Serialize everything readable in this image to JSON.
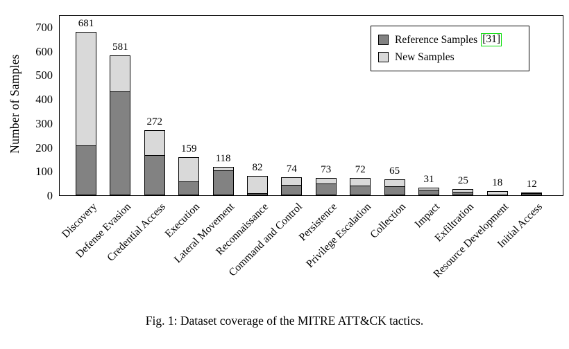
{
  "figure": {
    "caption": "Fig. 1: Dataset coverage of the MITRE ATT&CK tactics."
  },
  "legend": {
    "items": [
      {
        "label": "Reference Samples",
        "citation": "[31]"
      },
      {
        "label": "New Samples",
        "citation": ""
      }
    ]
  },
  "chart_data": {
    "type": "bar",
    "stacked": true,
    "orientation": "vertical",
    "title": "",
    "xlabel": "",
    "ylabel": "Number of Samples",
    "ylim": [
      0,
      750
    ],
    "yticks": [
      0,
      100,
      200,
      300,
      400,
      500,
      600,
      700
    ],
    "grid": false,
    "legend_position": "top-right",
    "categories": [
      "Discovery",
      "Defense Evasion",
      "Credential Access",
      "Execution",
      "Lateral Movement",
      "Reconnaissance",
      "Command and Control",
      "Persistence",
      "Privilege Escalation",
      "Collection",
      "Impact",
      "Exfiltration",
      "Resource Development",
      "Initial Access"
    ],
    "totals": [
      681,
      581,
      272,
      159,
      118,
      82,
      74,
      73,
      72,
      65,
      31,
      25,
      18,
      12
    ],
    "series": [
      {
        "name": "Reference Samples",
        "citation": "[31]",
        "color": "#828282",
        "values": [
          205,
          430,
          165,
          55,
          100,
          5,
          40,
          45,
          38,
          35,
          20,
          13,
          0,
          5
        ]
      },
      {
        "name": "New Samples",
        "citation": "",
        "color": "#d9d9d9",
        "values": [
          476,
          151,
          107,
          104,
          18,
          77,
          34,
          28,
          34,
          30,
          11,
          12,
          18,
          7
        ]
      }
    ],
    "bar_value_labels": [
      681,
      581,
      272,
      159,
      118,
      82,
      74,
      73,
      72,
      65,
      31,
      25,
      18,
      12
    ],
    "colors": {
      "outline": "#000000",
      "reference_fill": "#828282",
      "new_fill": "#d9d9d9",
      "citation_box": "#00dd00",
      "background": "#ffffff"
    }
  }
}
